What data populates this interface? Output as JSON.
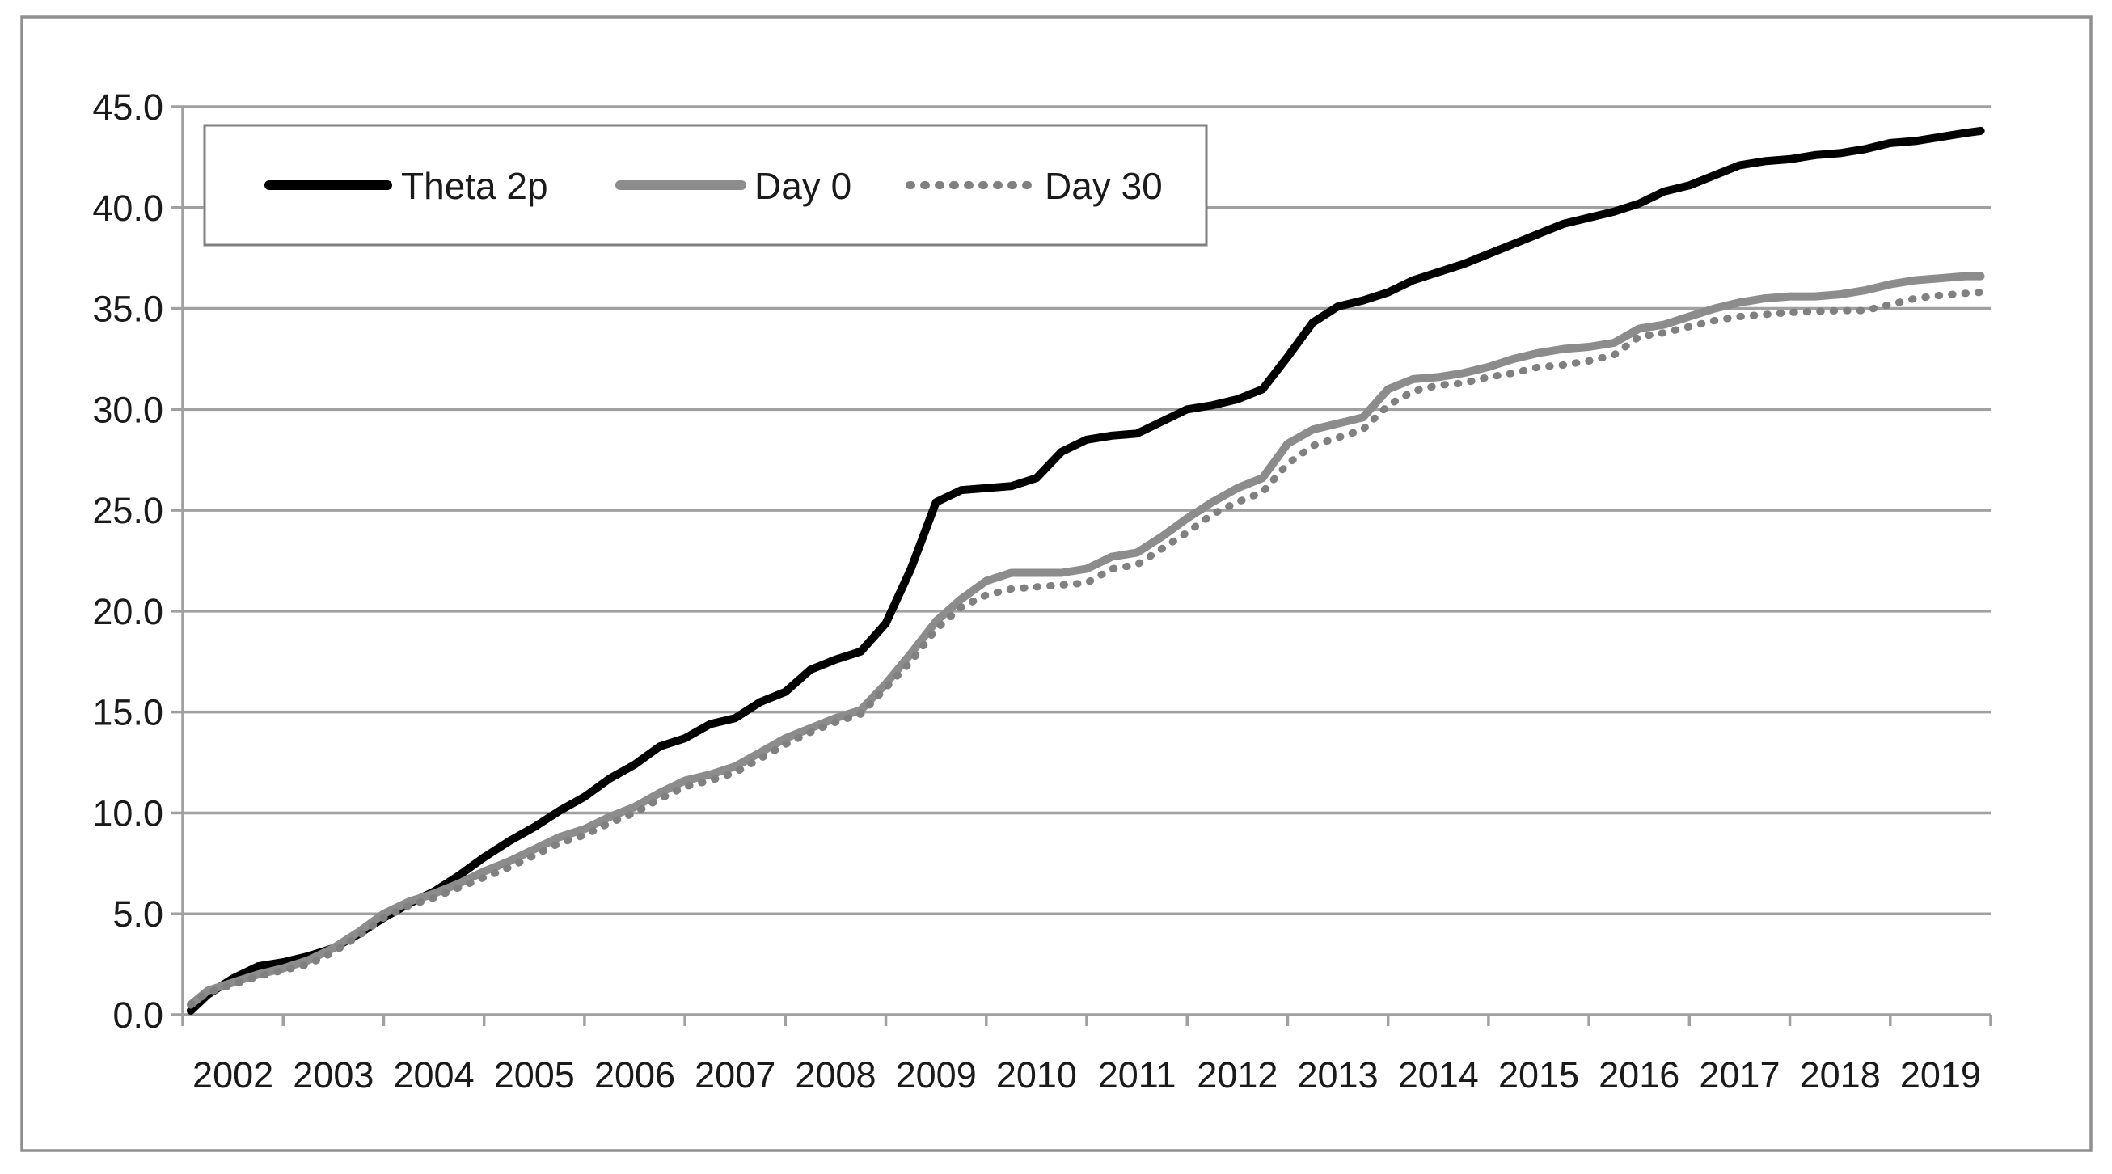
{
  "figure": {
    "background": "#ffffff",
    "outer_border_color": "#8f8f8f",
    "gridline_color": "#a0a0a0",
    "axis_color": "#a0a0a0",
    "text_color": "#1a1a1a"
  },
  "legend": {
    "position": "top-left-inside",
    "border_color": "#7f7f7f",
    "fill": "#ffffff"
  },
  "chart_data": {
    "type": "line",
    "title": "",
    "xlabel": "",
    "ylabel": "",
    "grid": "horizontal",
    "x_range": [
      2002,
      2020
    ],
    "ylim": [
      0,
      45
    ],
    "y_ticks": [
      0,
      5,
      10,
      15,
      20,
      25,
      30,
      35,
      40,
      45
    ],
    "y_tick_labels": [
      "0.0",
      "5.0",
      "10.0",
      "15.0",
      "20.0",
      "25.0",
      "30.0",
      "35.0",
      "40.0",
      "45.0"
    ],
    "x_tick_labels": [
      "2002",
      "2003",
      "2004",
      "2005",
      "2006",
      "2007",
      "2008",
      "2009",
      "2010",
      "2011",
      "2012",
      "2013",
      "2014",
      "2015",
      "2016",
      "2017",
      "2018",
      "2019"
    ],
    "x": [
      2002.08,
      2002.25,
      2002.5,
      2002.75,
      2003,
      2003.25,
      2003.5,
      2003.75,
      2004,
      2004.25,
      2004.5,
      2004.75,
      2005,
      2005.25,
      2005.5,
      2005.75,
      2006,
      2006.25,
      2006.5,
      2006.75,
      2007,
      2007.25,
      2007.5,
      2007.75,
      2008,
      2008.25,
      2008.5,
      2008.75,
      2009,
      2009.25,
      2009.5,
      2009.75,
      2010,
      2010.25,
      2010.5,
      2010.75,
      2011,
      2011.25,
      2011.5,
      2011.75,
      2012,
      2012.25,
      2012.5,
      2012.75,
      2013,
      2013.25,
      2013.5,
      2013.75,
      2014,
      2014.25,
      2014.5,
      2014.75,
      2015,
      2015.25,
      2015.5,
      2015.75,
      2016,
      2016.25,
      2016.5,
      2016.75,
      2017,
      2017.25,
      2017.5,
      2017.75,
      2018,
      2018.25,
      2018.5,
      2018.75,
      2019,
      2019.25,
      2019.5,
      2019.75,
      2019.9
    ],
    "series": [
      {
        "name": "Theta 2p",
        "color": "#000000",
        "style": "solid",
        "width": 10,
        "values": [
          0.2,
          1.0,
          1.8,
          2.4,
          2.6,
          2.9,
          3.3,
          4.0,
          4.8,
          5.5,
          6.1,
          6.9,
          7.8,
          8.6,
          9.3,
          10.1,
          10.8,
          11.7,
          12.4,
          13.3,
          13.7,
          14.4,
          14.7,
          15.5,
          16.0,
          17.1,
          17.6,
          18.0,
          19.4,
          22.1,
          25.4,
          26.0,
          26.1,
          26.2,
          26.6,
          27.9,
          28.5,
          28.7,
          28.8,
          29.4,
          30.0,
          30.2,
          30.5,
          31.0,
          32.6,
          34.3,
          35.1,
          35.4,
          35.8,
          36.4,
          36.8,
          37.2,
          37.7,
          38.2,
          38.7,
          39.2,
          39.5,
          39.8,
          40.2,
          40.8,
          41.1,
          41.6,
          42.1,
          42.3,
          42.4,
          42.6,
          42.7,
          42.9,
          43.2,
          43.3,
          43.5,
          43.7,
          43.8
        ]
      },
      {
        "name": "Day 0",
        "color": "#8c8c8c",
        "style": "solid",
        "width": 10,
        "values": [
          0.5,
          1.2,
          1.6,
          2.0,
          2.3,
          2.7,
          3.3,
          4.1,
          5.0,
          5.6,
          6.0,
          6.5,
          7.1,
          7.6,
          8.2,
          8.8,
          9.2,
          9.8,
          10.3,
          11.0,
          11.6,
          11.9,
          12.3,
          13.0,
          13.7,
          14.2,
          14.7,
          15.1,
          16.4,
          17.9,
          19.5,
          20.6,
          21.5,
          21.9,
          21.9,
          21.9,
          22.1,
          22.7,
          22.9,
          23.7,
          24.6,
          25.4,
          26.1,
          26.6,
          28.3,
          29.0,
          29.3,
          29.6,
          31.0,
          31.5,
          31.6,
          31.8,
          32.1,
          32.5,
          32.8,
          33.0,
          33.1,
          33.3,
          34.0,
          34.2,
          34.6,
          35.0,
          35.3,
          35.5,
          35.6,
          35.6,
          35.7,
          35.9,
          36.2,
          36.4,
          36.5,
          36.6,
          36.6
        ]
      },
      {
        "name": "Day 30",
        "color": "#808080",
        "style": "dotted",
        "width": 9,
        "values": [
          0.5,
          1.1,
          1.5,
          1.9,
          2.2,
          2.5,
          3.1,
          3.9,
          4.8,
          5.4,
          5.8,
          6.3,
          6.8,
          7.3,
          7.9,
          8.5,
          8.9,
          9.5,
          10.0,
          10.7,
          11.3,
          11.6,
          12.0,
          12.7,
          13.4,
          14.0,
          14.5,
          14.9,
          16.2,
          17.5,
          19.1,
          20.2,
          20.8,
          21.1,
          21.2,
          21.3,
          21.4,
          22.1,
          22.3,
          23.1,
          23.9,
          24.8,
          25.4,
          25.9,
          27.3,
          28.2,
          28.6,
          29.0,
          30.2,
          30.9,
          31.2,
          31.3,
          31.6,
          31.8,
          32.1,
          32.2,
          32.4,
          32.7,
          33.6,
          33.8,
          34.1,
          34.4,
          34.6,
          34.7,
          34.8,
          34.85,
          34.9,
          34.9,
          35.2,
          35.5,
          35.65,
          35.75,
          35.8
        ]
      }
    ]
  }
}
